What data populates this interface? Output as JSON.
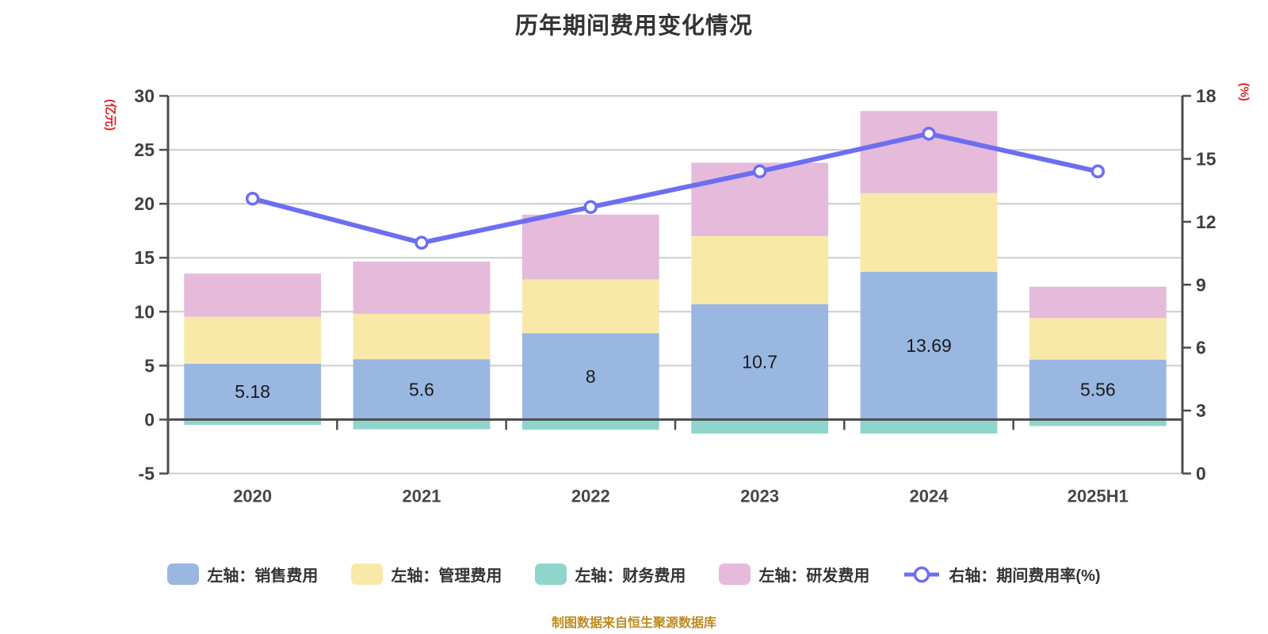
{
  "title": "历年期间费用变化情况",
  "footer_note": "制图数据来自恒生聚源数据库",
  "colors": {
    "sales": "#9ab7e2",
    "admin": "#f8e9a9",
    "finance": "#90d5cc",
    "rnd": "#e6badb",
    "rate_line": "#6c6ef2",
    "grid": "#cdcdcd",
    "axis": "#4c4c4c",
    "tick_text": "#3f3f3f",
    "bar_label": "#1a1a1a",
    "title": "#333333",
    "axis_title": "#e02222",
    "footer": "#bd8a1f",
    "marker_fill": "#ffffff"
  },
  "chart_data": {
    "type": "stacked-bar+line",
    "title": "历年期间费用变化情况",
    "categories": [
      "2020",
      "2021",
      "2022",
      "2023",
      "2024",
      "2025H1"
    ],
    "series": [
      {
        "name": "左轴：销售费用",
        "type": "bar",
        "axis": "left",
        "color_key": "sales",
        "values": [
          5.18,
          5.6,
          8,
          10.7,
          13.69,
          5.56
        ],
        "data_labels": [
          "5.18",
          "5.6",
          "8",
          "10.7",
          "13.69",
          "5.56"
        ]
      },
      {
        "name": "左轴：管理费用",
        "type": "bar",
        "axis": "left",
        "color_key": "admin",
        "values": [
          4.35,
          4.2,
          5.0,
          6.3,
          7.3,
          3.85
        ]
      },
      {
        "name": "左轴：财务费用",
        "type": "bar",
        "axis": "left",
        "color_key": "finance",
        "values": [
          -0.5,
          -0.9,
          -0.95,
          -1.3,
          -1.3,
          -0.6
        ]
      },
      {
        "name": "左轴：研发费用",
        "type": "bar",
        "axis": "left",
        "color_key": "rnd",
        "values": [
          4.0,
          4.85,
          6.0,
          6.8,
          7.6,
          2.9
        ]
      },
      {
        "name": "右轴：期间费用率(%)",
        "type": "line",
        "axis": "right",
        "color_key": "rate_line",
        "values": [
          13.1,
          11.0,
          12.7,
          14.4,
          16.2,
          14.4
        ]
      }
    ],
    "left_axis": {
      "title": "(亿元)",
      "min": -5,
      "max": 30,
      "step": 5,
      "ticks": [
        30,
        25,
        20,
        15,
        10,
        5,
        0,
        -5
      ]
    },
    "right_axis": {
      "title": "(%)",
      "min": 0,
      "max": 18,
      "step": 3,
      "ticks": [
        18,
        15,
        12,
        9,
        6,
        3,
        0
      ]
    },
    "grid": true,
    "legend_position": "bottom",
    "legend": [
      {
        "label": "左轴：销售费用",
        "type": "bar",
        "color_key": "sales"
      },
      {
        "label": "左轴：管理费用",
        "type": "bar",
        "color_key": "admin"
      },
      {
        "label": "左轴：财务费用",
        "type": "bar",
        "color_key": "finance"
      },
      {
        "label": "左轴：研发费用",
        "type": "bar",
        "color_key": "rnd"
      },
      {
        "label": "右轴：期间费用率(%)",
        "type": "line",
        "color_key": "rate_line"
      }
    ]
  }
}
